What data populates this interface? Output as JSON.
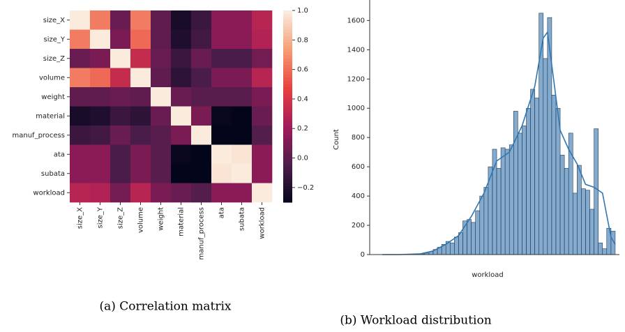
{
  "chart_data": [
    {
      "type": "heatmap",
      "caption": "(a) Correlation matrix",
      "labels": [
        "size_X",
        "size_Y",
        "size_Z",
        "volume",
        "weight",
        "material",
        "manuf_process",
        "ata",
        "subata",
        "workload"
      ],
      "values": [
        [
          1,
          0.65,
          0.05,
          0.65,
          0.02,
          -0.22,
          -0.1,
          0.15,
          0.15,
          0.3
        ],
        [
          0.65,
          1,
          0.1,
          0.6,
          0.02,
          -0.2,
          -0.08,
          0.15,
          0.15,
          0.28
        ],
        [
          0.05,
          0.1,
          1,
          0.35,
          0.05,
          -0.1,
          0.05,
          -0.05,
          -0.05,
          0.08
        ],
        [
          0.65,
          0.6,
          0.35,
          1,
          0.02,
          -0.15,
          -0.05,
          0.1,
          0.1,
          0.3
        ],
        [
          0.02,
          0.02,
          0.05,
          0.02,
          1,
          0.05,
          0,
          0,
          0,
          0.1
        ],
        [
          -0.22,
          -0.2,
          -0.1,
          -0.15,
          0.05,
          1,
          0.1,
          -0.28,
          -0.3,
          0.05
        ],
        [
          -0.1,
          -0.08,
          0.05,
          -0.05,
          0,
          0.1,
          1,
          -0.3,
          -0.3,
          -0.02
        ],
        [
          0.15,
          0.15,
          -0.05,
          0.1,
          0,
          -0.28,
          -0.3,
          1,
          0.98,
          0.15
        ],
        [
          0.15,
          0.15,
          -0.05,
          0.1,
          0,
          -0.3,
          -0.3,
          0.98,
          1,
          0.15
        ],
        [
          0.3,
          0.28,
          0.08,
          0.3,
          0.1,
          0.05,
          -0.02,
          0.15,
          0.15,
          1
        ]
      ],
      "colormap": "rocket",
      "clim": [
        -0.3,
        1.0
      ],
      "cticks": [
        {
          "value": -0.2,
          "label": "−0.2"
        },
        {
          "value": 0,
          "label": "0.0"
        },
        0.2,
        0.4,
        0.6,
        0.8,
        {
          "value": 1.0,
          "label": "1.0"
        }
      ]
    },
    {
      "type": "histogram",
      "caption": "(b) Workload distribution",
      "x_label": "workload",
      "y_label": "Count",
      "color": "#5b8fbd",
      "bins": [
        0,
        1,
        2,
        3,
        4,
        5,
        6,
        7,
        8,
        9,
        10,
        11,
        12,
        13,
        14,
        15,
        16,
        17,
        18,
        19,
        20,
        21,
        22,
        23,
        24,
        25,
        26,
        27,
        28,
        29,
        30,
        31,
        32,
        33,
        34,
        35,
        36,
        37,
        38,
        39,
        40,
        41,
        42,
        43,
        44,
        45,
        46
      ],
      "counts": [
        5,
        10,
        20,
        35,
        50,
        70,
        90,
        80,
        120,
        150,
        230,
        240,
        220,
        300,
        400,
        460,
        600,
        720,
        590,
        730,
        720,
        750,
        980,
        830,
        880,
        1000,
        1130,
        1070,
        1650,
        1340,
        1620,
        1090,
        1000,
        680,
        590,
        830,
        420,
        610,
        450,
        440,
        310,
        860,
        80,
        40,
        180,
        160
      ],
      "kde": {
        "color": "#2f76b4",
        "x": [
          -9,
          -5,
          0,
          3,
          6,
          9,
          12,
          15,
          18,
          21,
          24,
          27,
          29,
          30,
          31,
          33,
          35,
          37,
          39,
          41,
          43,
          45,
          46
        ],
        "y": [
          0,
          0,
          5,
          25,
          70,
          130,
          260,
          420,
          640,
          700,
          880,
          1150,
          1480,
          1520,
          1300,
          850,
          720,
          620,
          480,
          460,
          420,
          120,
          70
        ]
      },
      "xlim": [
        -12,
        47
      ],
      "ylim": [
        0,
        1740
      ],
      "yticks": [
        0,
        200,
        400,
        600,
        800,
        1000,
        1200,
        1400,
        1600
      ]
    }
  ]
}
